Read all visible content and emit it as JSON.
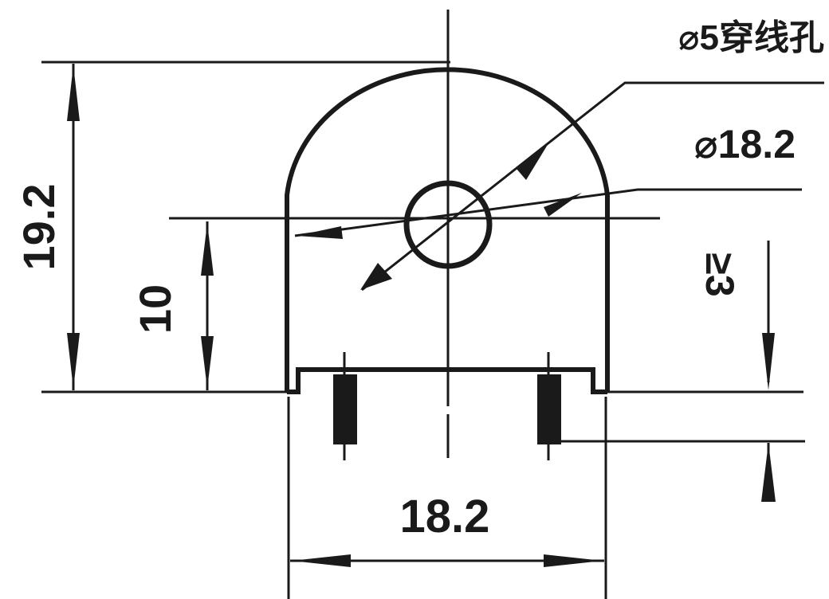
{
  "drawing": {
    "labels": {
      "hole_note": "⌀5穿线孔",
      "diameter": "⌀18.2",
      "total_height": "19.2",
      "center_height": "10",
      "lead_length": "≥3",
      "width": "18.2"
    },
    "colors": {
      "ink": "#1a1a1a",
      "paper": "#ffffff"
    }
  }
}
